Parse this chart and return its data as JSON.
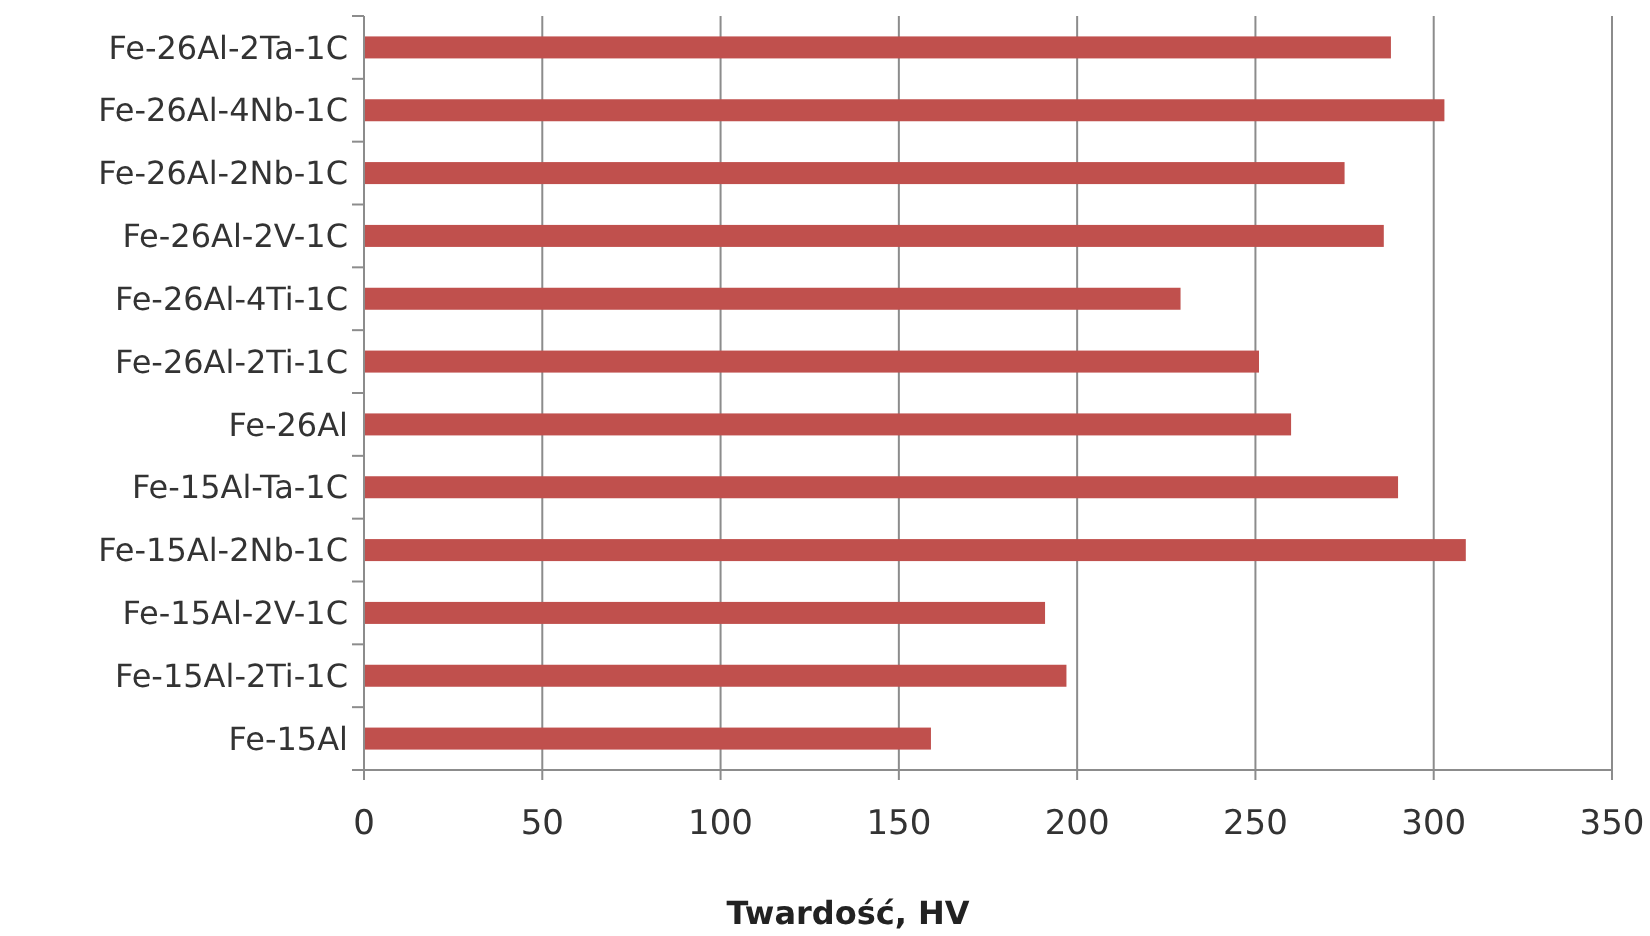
{
  "chart_data": {
    "type": "bar",
    "orientation": "horizontal",
    "xlabel": "Twardość, HV",
    "categories": [
      "Fe-26Al-2Ta-1C",
      "Fe-26Al-4Nb-1C",
      "Fe-26Al-2Nb-1C",
      "Fe-26Al-2V-1C",
      "Fe-26Al-4Ti-1C",
      "Fe-26Al-2Ti-1C",
      "Fe-26Al",
      "Fe-15Al-Ta-1C",
      "Fe-15Al-2Nb-1C",
      "Fe-15Al-2V-1C",
      "Fe-15Al-2Ti-1C",
      "Fe-15Al"
    ],
    "values": [
      288,
      303,
      275,
      286,
      229,
      251,
      260,
      290,
      309,
      191,
      197,
      159
    ],
    "color": "#c0504d",
    "xlim": [
      0,
      350
    ],
    "xticks": [
      0,
      50,
      100,
      150,
      200,
      250,
      300,
      350
    ],
    "grid": "x"
  }
}
